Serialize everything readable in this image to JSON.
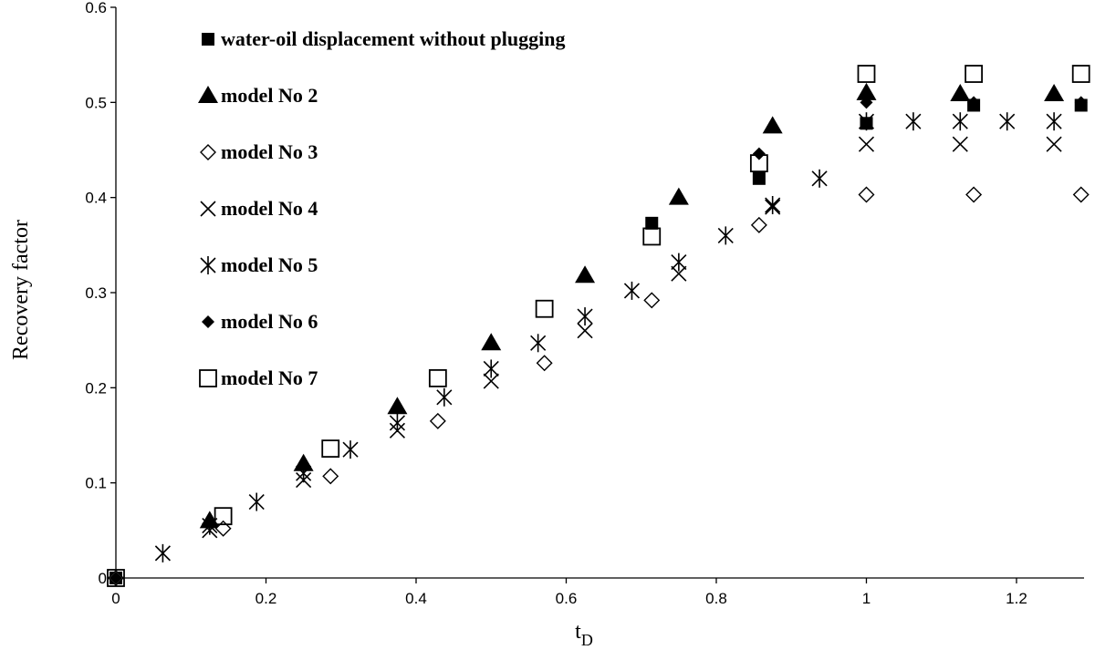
{
  "chart_data": {
    "type": "scatter",
    "title": "",
    "xlabel": "t",
    "xlabel_sub": "D",
    "ylabel": "Recovery factor",
    "xlim": [
      0,
      1.29
    ],
    "ylim": [
      0,
      0.6
    ],
    "x_ticks": [
      "0",
      "0.2",
      "0.4",
      "0.6",
      "0.8",
      "1",
      "1.2"
    ],
    "y_ticks": [
      "0",
      "0.1",
      "0.2",
      "0.3",
      "0.4",
      "0.5",
      "0.6"
    ],
    "grid": false,
    "legend_position": "top-left inside",
    "series": [
      {
        "name": "water-oil displacement without plugging",
        "marker": "filled-square",
        "points": [
          [
            0,
            0
          ],
          [
            0.714,
            0.373
          ],
          [
            0.857,
            0.42
          ],
          [
            1.0,
            0.478
          ],
          [
            1.143,
            0.497
          ],
          [
            1.286,
            0.497
          ]
        ]
      },
      {
        "name": "model No 2",
        "marker": "filled-triangle",
        "points": [
          [
            0.125,
            0.06
          ],
          [
            0.25,
            0.12
          ],
          [
            0.375,
            0.18
          ],
          [
            0.5,
            0.247
          ],
          [
            0.625,
            0.318
          ],
          [
            0.75,
            0.4
          ],
          [
            0.875,
            0.475
          ],
          [
            1.0,
            0.51
          ],
          [
            1.125,
            0.509
          ],
          [
            1.25,
            0.509
          ]
        ]
      },
      {
        "name": "model No 3",
        "marker": "open-diamond",
        "points": [
          [
            0,
            0
          ],
          [
            0.143,
            0.052
          ],
          [
            0.286,
            0.107
          ],
          [
            0.429,
            0.165
          ],
          [
            0.571,
            0.226
          ],
          [
            0.714,
            0.292
          ],
          [
            0.857,
            0.371
          ],
          [
            1.0,
            0.403
          ],
          [
            1.143,
            0.403
          ],
          [
            1.286,
            0.403
          ]
        ]
      },
      {
        "name": "model No 4",
        "marker": "x",
        "points": [
          [
            0.125,
            0.05
          ],
          [
            0.25,
            0.103
          ],
          [
            0.375,
            0.155
          ],
          [
            0.5,
            0.207
          ],
          [
            0.625,
            0.26
          ],
          [
            0.75,
            0.32
          ],
          [
            0.875,
            0.39
          ],
          [
            1.0,
            0.456
          ],
          [
            1.125,
            0.456
          ],
          [
            1.25,
            0.456
          ]
        ]
      },
      {
        "name": "model No 5",
        "marker": "asterisk",
        "points": [
          [
            0.0625,
            0.026
          ],
          [
            0.125,
            0.055
          ],
          [
            0.1875,
            0.08
          ],
          [
            0.25,
            0.11
          ],
          [
            0.3125,
            0.135
          ],
          [
            0.375,
            0.163
          ],
          [
            0.4375,
            0.19
          ],
          [
            0.5,
            0.22
          ],
          [
            0.5625,
            0.247
          ],
          [
            0.625,
            0.275
          ],
          [
            0.6875,
            0.302
          ],
          [
            0.75,
            0.332
          ],
          [
            0.8125,
            0.36
          ],
          [
            0.875,
            0.392
          ],
          [
            0.9375,
            0.42
          ],
          [
            1.0,
            0.48
          ],
          [
            1.0625,
            0.48
          ],
          [
            1.125,
            0.48
          ],
          [
            1.1875,
            0.48
          ],
          [
            1.25,
            0.48
          ]
        ]
      },
      {
        "name": "model No 6",
        "marker": "filled-diamond",
        "points": [
          [
            0,
            0
          ],
          [
            0.857,
            0.446
          ],
          [
            1.0,
            0.5
          ],
          [
            1.143,
            0.5
          ],
          [
            1.286,
            0.5
          ]
        ]
      },
      {
        "name": "model No 7",
        "marker": "open-square",
        "points": [
          [
            0,
            0
          ],
          [
            0.143,
            0.065
          ],
          [
            0.286,
            0.136
          ],
          [
            0.429,
            0.21
          ],
          [
            0.571,
            0.283
          ],
          [
            0.714,
            0.359
          ],
          [
            0.857,
            0.436
          ],
          [
            1.0,
            0.53
          ],
          [
            1.143,
            0.53
          ],
          [
            1.286,
            0.53
          ]
        ]
      }
    ]
  }
}
